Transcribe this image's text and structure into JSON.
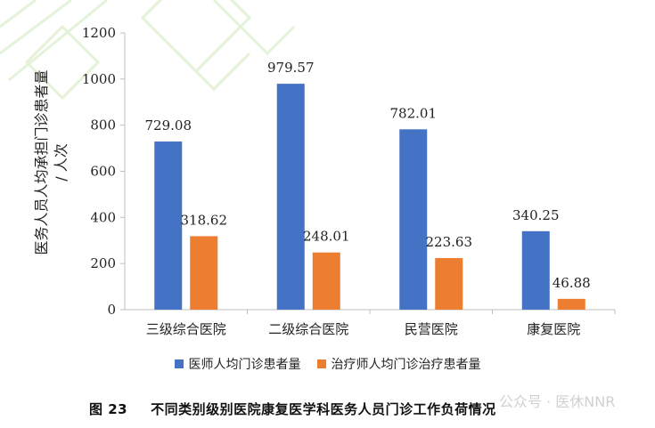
{
  "chart_data": {
    "type": "bar",
    "ylabel": "医务人员人均承担门诊患者量\n/ 人次",
    "xlabel": "",
    "ylim": [
      0,
      1200
    ],
    "yticks": [
      0,
      200,
      400,
      600,
      800,
      1000,
      1200
    ],
    "categories": [
      "三级综合医院",
      "二级综合医院",
      "民营医院",
      "康复医院"
    ],
    "series": [
      {
        "name": "医师人均门诊患者量",
        "color": "#4472C4",
        "values": [
          729.08,
          979.57,
          782.01,
          340.25
        ],
        "labels": [
          "729.08",
          "979.57",
          "782.01",
          "340.25"
        ]
      },
      {
        "name": "治疗师人均门诊治疗患者量",
        "color": "#ED7D31",
        "values": [
          318.62,
          248.01,
          223.63,
          46.88
        ],
        "labels": [
          "318.62",
          "248.01",
          "223.63",
          "46.88"
        ]
      }
    ],
    "grid": false,
    "legend_position": "bottom"
  },
  "caption": {
    "figure_number": "图 23",
    "title": "不同类别级别医院康复医学科医务人员门诊工作负荷情况"
  },
  "watermark": {
    "text": "公众号 · 医休NNR"
  }
}
